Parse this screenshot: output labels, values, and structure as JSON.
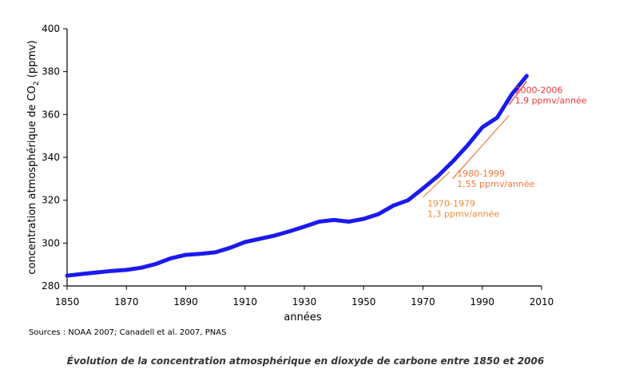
{
  "chart_data": {
    "type": "line",
    "x_label": "années",
    "y_label_main": "concentration atmosphérique de CO",
    "y_label_sub": "2",
    "y_label_unit": " (ppmv)",
    "xlim": [
      1850,
      2010
    ],
    "ylim": [
      280,
      400
    ],
    "x_ticks": [
      1850,
      1870,
      1890,
      1910,
      1930,
      1950,
      1970,
      1990,
      2010
    ],
    "y_ticks": [
      280,
      300,
      320,
      340,
      360,
      380,
      400
    ],
    "grid": false,
    "series": [
      {
        "color": "#1a1aee",
        "x": [
          1850,
          1855,
          1860,
          1865,
          1870,
          1875,
          1880,
          1885,
          1890,
          1895,
          1900,
          1905,
          1910,
          1915,
          1920,
          1925,
          1930,
          1935,
          1940,
          1945,
          1950,
          1955,
          1960,
          1965,
          1970,
          1975,
          1980,
          1985,
          1990,
          1995,
          2000,
          2005
        ],
        "y": [
          284.8,
          285.6,
          286.3,
          287.0,
          287.5,
          288.5,
          290.3,
          292.9,
          294.5,
          295.0,
          295.7,
          297.8,
          300.5,
          302.0,
          303.5,
          305.5,
          307.7,
          310.0,
          310.8,
          310.0,
          311.3,
          313.5,
          317.5,
          320.0,
          325.5,
          331.2,
          338.0,
          345.5,
          354.0,
          358.5,
          369.5,
          378.0
        ]
      }
    ],
    "trend_lines": [
      {
        "label": "1970-1979",
        "rate": "1,3 ppmv/année",
        "color": "#f08c3c",
        "x": [
          1970,
          1979
        ],
        "y": [
          321.5,
          333.2
        ]
      },
      {
        "label": "1980-1999",
        "rate": "1,55 ppmv/année",
        "color": "#f0783c",
        "x": [
          1980,
          1999
        ],
        "y": [
          330.0,
          359.5
        ]
      },
      {
        "label": "2000-2006",
        "rate": "1,9 ppmv/année",
        "color": "#e8383c",
        "x": [
          1999,
          2005
        ],
        "y": [
          364.5,
          375.5
        ]
      }
    ]
  },
  "source": "Sources : NOAA 2007; Canadell et al. 2007, PNAS",
  "caption": "Évolution de la concentration atmosphérique en dioxyde de carbone entre 1850 et 2006"
}
